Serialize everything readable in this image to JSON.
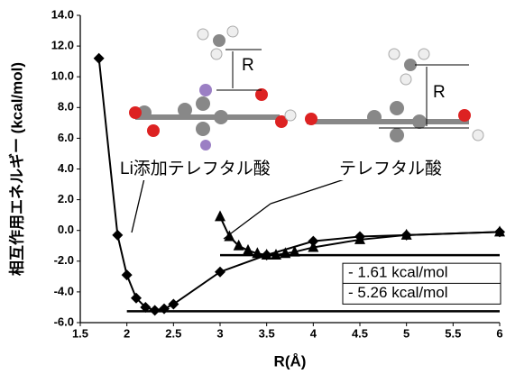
{
  "chart_data": {
    "type": "scatter",
    "x_label": "R(Å)",
    "y_label": "相互作用エネルギー (kcal/mol)",
    "xlim": [
      1.5,
      6
    ],
    "xticks": [
      1.5,
      2,
      2.5,
      3,
      3.5,
      4,
      4.5,
      5,
      5.5,
      6
    ],
    "ylim": [
      -6,
      14
    ],
    "yticks": [
      {
        "value": -6,
        "label": "-6.0"
      },
      {
        "value": -4,
        "label": "-4.0"
      },
      {
        "value": -2,
        "label": "-2.0"
      },
      {
        "value": 0,
        "label": "0.0"
      },
      {
        "value": 2,
        "label": "2.0"
      },
      {
        "value": 4,
        "label": "4.0"
      },
      {
        "value": 6,
        "label": "6.0"
      },
      {
        "value": 8,
        "label": "8.0"
      },
      {
        "value": 10,
        "label": "10.0"
      },
      {
        "value": 12,
        "label": "12.0"
      },
      {
        "value": 14,
        "label": "14.0"
      }
    ],
    "series": [
      {
        "name": "Li添加テレフタル酸",
        "color": "#000000",
        "marker": "diamond",
        "x": [
          1.7,
          1.9,
          2.0,
          2.1,
          2.2,
          2.3,
          2.4,
          2.5,
          3.0,
          3.5,
          4.0,
          4.5,
          5.0,
          6.0
        ],
        "values": [
          11.2,
          -0.3,
          -2.9,
          -4.4,
          -5.0,
          -5.2,
          -5.1,
          -4.8,
          -2.7,
          -1.6,
          -0.7,
          -0.4,
          -0.3,
          -0.1
        ]
      },
      {
        "name": "テレフタル酸",
        "color": "#000000",
        "marker": "triangle",
        "x": [
          3.0,
          3.1,
          3.2,
          3.3,
          3.4,
          3.5,
          3.6,
          3.7,
          3.8,
          4.0,
          4.5,
          5.0,
          6.0
        ],
        "values": [
          0.9,
          -0.4,
          -1.0,
          -1.3,
          -1.5,
          -1.6,
          -1.6,
          -1.5,
          -1.4,
          -1.1,
          -0.6,
          -0.3,
          -0.1
        ]
      }
    ],
    "reference_lines": [
      {
        "value": -1.61,
        "label": "- 1.61 kcal/mol",
        "x": [
          3.0,
          6
        ]
      },
      {
        "value": -5.26,
        "label": "- 5.26 kcal/mol",
        "x": [
          2.0,
          6
        ]
      }
    ],
    "molecule_labels": [
      "R",
      "R"
    ]
  }
}
